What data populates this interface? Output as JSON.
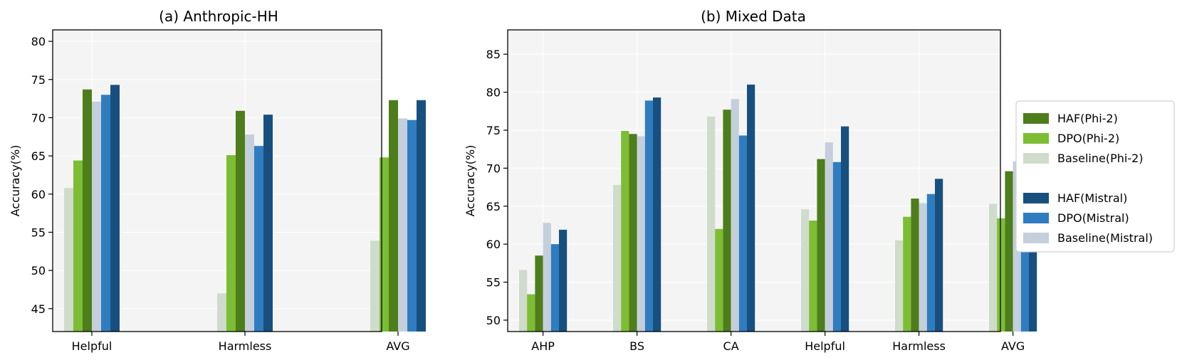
{
  "chart_data": [
    {
      "type": "bar",
      "title": "(a) Anthropic-HH",
      "xlabel": "",
      "ylabel": "Accuracy(%)",
      "ylim": [
        42,
        81.5
      ],
      "yticks": [
        45,
        50,
        55,
        60,
        65,
        70,
        75,
        80
      ],
      "grid": true,
      "categories": [
        "Helpful",
        "Harmless",
        "AVG"
      ],
      "series": [
        {
          "name": "Baseline(Phi-2)",
          "color": "#cfdccb",
          "values": [
            60.8,
            47.0,
            53.9
          ]
        },
        {
          "name": "DPO(Phi-2)",
          "color": "#7dbd33",
          "values": [
            64.4,
            65.1,
            64.8
          ]
        },
        {
          "name": "HAF(Phi-2)",
          "color": "#4e7d1c",
          "values": [
            73.7,
            70.9,
            72.3
          ]
        },
        {
          "name": "Baseline(Mistral)",
          "color": "#c4cfdb",
          "values": [
            72.1,
            67.8,
            69.9
          ]
        },
        {
          "name": "DPO(Mistral)",
          "color": "#2f7dc0",
          "values": [
            73.0,
            66.3,
            69.7
          ]
        },
        {
          "name": "HAF(Mistral)",
          "color": "#17507f",
          "values": [
            74.3,
            70.4,
            72.3
          ]
        }
      ]
    },
    {
      "type": "bar",
      "title": "(b) Mixed Data",
      "xlabel": "",
      "ylabel": "Accuracy(%)",
      "ylim": [
        48.5,
        88.2
      ],
      "yticks": [
        50,
        55,
        60,
        65,
        70,
        75,
        80,
        85
      ],
      "grid": true,
      "categories": [
        "AHP",
        "BS",
        "CA",
        "Helpful",
        "Harmless",
        "AVG"
      ],
      "series": [
        {
          "name": "Baseline(Phi-2)",
          "color": "#cfdccb",
          "values": [
            56.6,
            67.8,
            76.8,
            64.6,
            60.5,
            65.3
          ]
        },
        {
          "name": "DPO(Phi-2)",
          "color": "#7dbd33",
          "values": [
            53.4,
            74.9,
            62.0,
            63.1,
            63.6,
            63.4
          ]
        },
        {
          "name": "HAF(Phi-2)",
          "color": "#4e7d1c",
          "values": [
            58.5,
            74.5,
            77.7,
            71.2,
            66.0,
            69.6
          ]
        },
        {
          "name": "Baseline(Mistral)",
          "color": "#c4cfdb",
          "values": [
            62.8,
            74.2,
            79.1,
            73.4,
            65.4,
            70.9
          ]
        },
        {
          "name": "DPO(Mistral)",
          "color": "#2f7dc0",
          "values": [
            60.0,
            78.9,
            74.3,
            70.8,
            66.6,
            70.1
          ]
        },
        {
          "name": "HAF(Mistral)",
          "color": "#17507f",
          "values": [
            61.9,
            79.3,
            81.0,
            75.5,
            68.6,
            73.2
          ]
        }
      ]
    }
  ],
  "legend": {
    "placement": "right",
    "groups": [
      [
        {
          "label": "HAF(Phi-2)",
          "color": "#4e7d1c"
        },
        {
          "label": "DPO(Phi-2)",
          "color": "#7dbd33"
        },
        {
          "label": "Baseline(Phi-2)",
          "color": "#cfdccb"
        }
      ],
      [
        {
          "label": "HAF(Mistral)",
          "color": "#17507f"
        },
        {
          "label": "DPO(Mistral)",
          "color": "#2f7dc0"
        },
        {
          "label": "Baseline(Mistral)",
          "color": "#c4cfdb"
        }
      ]
    ]
  },
  "colors": {
    "plot_background": "#f4f4f4",
    "grid": "#ffffff",
    "frame": "#000000"
  }
}
